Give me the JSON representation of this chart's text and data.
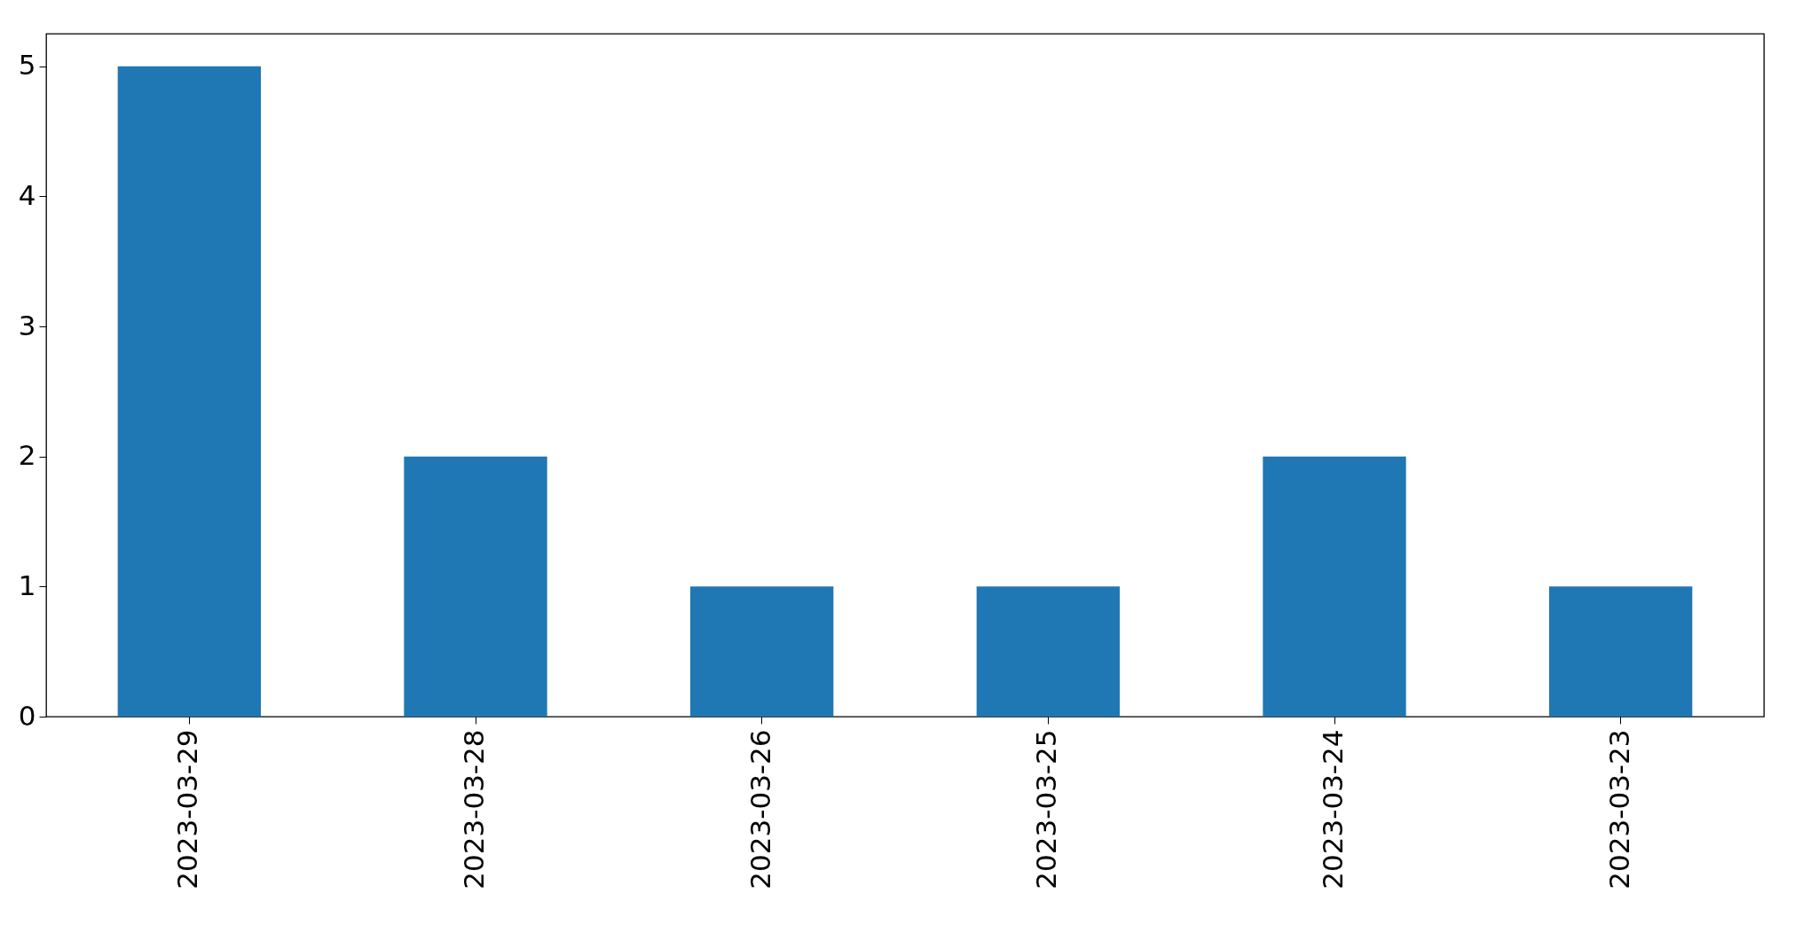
{
  "chart_data": {
    "type": "bar",
    "categories": [
      "2023-03-29",
      "2023-03-28",
      "2023-03-26",
      "2023-03-25",
      "2023-03-24",
      "2023-03-23"
    ],
    "values": [
      5,
      2,
      1,
      1,
      2,
      1
    ],
    "color": "#1f77b4",
    "ylim": [
      0,
      5.25
    ],
    "yticks": [
      0,
      1,
      2,
      3,
      4,
      5
    ],
    "grid": false
  }
}
